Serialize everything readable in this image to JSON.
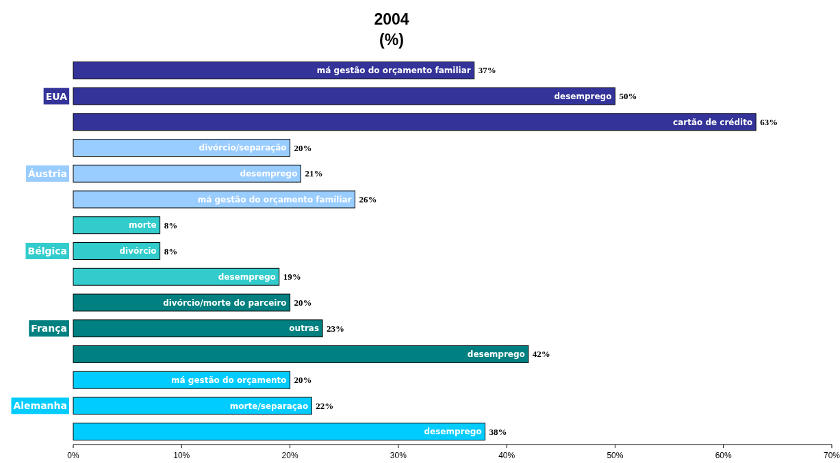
{
  "chart_data": {
    "type": "bar",
    "orientation": "horizontal",
    "title": "2004",
    "subtitle": "(%)",
    "categories": [
      "má gestão do orçamento familiar",
      "desemprego",
      "cartão de crédito",
      "divórcio/separação",
      "desemprego",
      "má gestão do orçamento familiar",
      "morte",
      "divórcio",
      "desemprego",
      "divórcio/morte do parceiro",
      "outras",
      "desemprego",
      "má gestão do orçamento",
      "morte/separaçao",
      "desemprego"
    ],
    "series": [
      {
        "name": "EUA",
        "color": "#333399",
        "values": [
          37,
          50,
          63,
          null,
          null,
          null,
          null,
          null,
          null,
          null,
          null,
          null,
          null,
          null,
          null
        ],
        "value_labels": [
          "37%",
          "50%",
          "63%",
          null,
          null,
          null,
          null,
          null,
          null,
          null,
          null,
          null,
          null,
          null,
          null
        ]
      },
      {
        "name": "Áustria",
        "color": "#99ccff",
        "values": [
          null,
          null,
          null,
          20,
          21,
          26,
          null,
          null,
          null,
          null,
          null,
          null,
          null,
          null,
          null
        ],
        "value_labels": [
          null,
          null,
          null,
          "20%",
          "21%",
          "26%",
          null,
          null,
          null,
          null,
          null,
          null,
          null,
          null,
          null
        ]
      },
      {
        "name": "Bélgica",
        "color": "#33cccc",
        "values": [
          null,
          null,
          null,
          null,
          null,
          null,
          8,
          8,
          19,
          null,
          null,
          null,
          null,
          null,
          null
        ],
        "value_labels": [
          null,
          null,
          null,
          null,
          null,
          null,
          "8%",
          "8%",
          "19%",
          null,
          null,
          null,
          null,
          null,
          null
        ]
      },
      {
        "name": "França",
        "color": "#008080",
        "values": [
          null,
          null,
          null,
          null,
          null,
          null,
          null,
          null,
          null,
          20,
          23,
          42,
          null,
          null,
          null
        ],
        "value_labels": [
          null,
          null,
          null,
          null,
          null,
          null,
          null,
          null,
          null,
          "20%",
          "23%",
          "42%",
          null,
          null,
          null
        ]
      },
      {
        "name": "Alemanha",
        "color": "#00ccff",
        "values": [
          null,
          null,
          null,
          null,
          null,
          null,
          null,
          null,
          null,
          null,
          null,
          null,
          20,
          22,
          38
        ],
        "value_labels": [
          null,
          null,
          null,
          null,
          null,
          null,
          null,
          null,
          null,
          null,
          null,
          null,
          "20%",
          "22%",
          "38%"
        ]
      }
    ],
    "xlim": [
      0,
      70
    ],
    "xticks": [
      {
        "value": 0,
        "label": "0%"
      },
      {
        "value": 10,
        "label": "10%"
      },
      {
        "value": 20,
        "label": "20%"
      },
      {
        "value": 30,
        "label": "30%"
      },
      {
        "value": 40,
        "label": "40%"
      },
      {
        "value": 50,
        "label": "50%"
      },
      {
        "value": 60,
        "label": "60%"
      },
      {
        "value": 70,
        "label": "70%"
      }
    ]
  }
}
